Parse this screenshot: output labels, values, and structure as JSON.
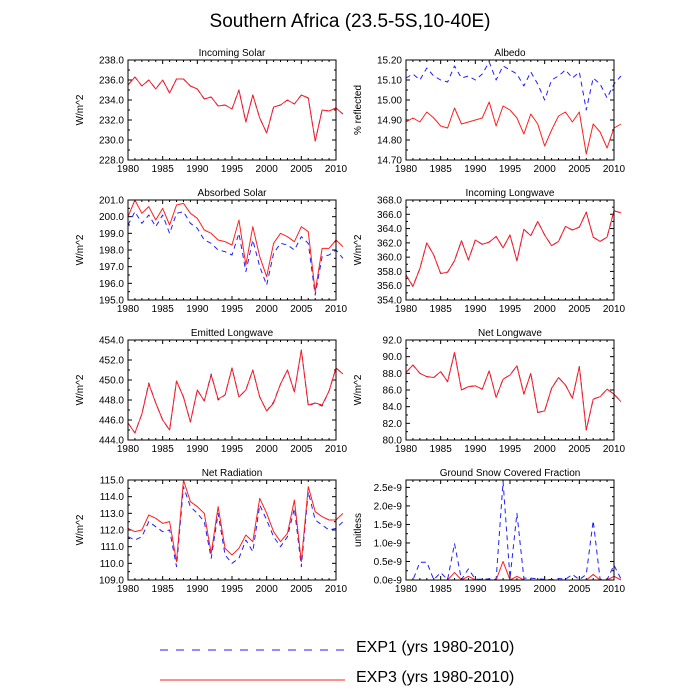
{
  "figure_title": "Southern Africa (23.5-5S,10-40E)",
  "legend": [
    {
      "name": "EXP1 (yrs 1980-2010)",
      "color": "#1f1fff",
      "dash": true
    },
    {
      "name": "EXP3 (yrs 1980-2010)",
      "color": "#ff1f1f",
      "dash": false
    }
  ],
  "chart_data": [
    {
      "type": "line",
      "title": "Incoming Solar",
      "ylabel": "W/m^2",
      "xlabel": "",
      "xlim": [
        1980,
        2010
      ],
      "ylim": [
        228,
        238
      ],
      "yticks": [
        228,
        230,
        232,
        234,
        236,
        238
      ],
      "ytick_labels": [
        "228.0",
        "230.0",
        "232.0",
        "234.0",
        "236.0",
        "238.0"
      ],
      "xticks": [
        1980,
        1985,
        1990,
        1995,
        2000,
        2005,
        2010
      ],
      "xtick_labels": [
        "1980",
        "1985",
        "1990",
        "1995",
        "2000",
        "2005",
        "2010"
      ],
      "series": [
        {
          "name": "EXP1",
          "values": [
            235.5,
            236.3,
            235.4,
            236.0,
            235.1,
            236.0,
            234.7,
            236.1,
            236.1,
            235.4,
            235.1,
            234.1,
            234.3,
            233.4,
            233.5,
            233.1,
            235.0,
            231.8,
            234.5,
            232.2,
            230.7,
            233.3,
            233.5,
            234.0,
            233.6,
            234.5,
            234.2,
            229.9,
            233.0,
            232.9,
            233.2,
            232.6
          ]
        },
        {
          "name": "EXP3",
          "values": [
            235.5,
            236.3,
            235.4,
            236.0,
            235.1,
            236.0,
            234.7,
            236.1,
            236.1,
            235.4,
            235.1,
            234.1,
            234.3,
            233.4,
            233.5,
            233.1,
            235.0,
            231.8,
            234.5,
            232.2,
            230.7,
            233.3,
            233.5,
            234.0,
            233.6,
            234.5,
            234.2,
            229.9,
            233.0,
            232.9,
            233.2,
            232.6
          ]
        }
      ]
    },
    {
      "type": "line",
      "title": "Albedo",
      "ylabel": "% reflected",
      "xlabel": "",
      "xlim": [
        1980,
        2010
      ],
      "ylim": [
        14.7,
        15.2
      ],
      "yticks": [
        14.7,
        14.8,
        14.9,
        15.0,
        15.1,
        15.2
      ],
      "ytick_labels": [
        "14.70",
        "14.80",
        "14.90",
        "15.00",
        "15.10",
        "15.20"
      ],
      "xticks": [
        1980,
        1985,
        1990,
        1995,
        2000,
        2005,
        2010
      ],
      "xtick_labels": [
        "1980",
        "1985",
        "1990",
        "1995",
        "2000",
        "2005",
        "2010"
      ],
      "series": [
        {
          "name": "EXP1",
          "values": [
            15.11,
            15.13,
            15.1,
            15.16,
            15.12,
            15.1,
            15.09,
            15.17,
            15.11,
            15.12,
            15.1,
            15.13,
            15.19,
            15.1,
            15.17,
            15.15,
            15.13,
            15.07,
            15.14,
            15.08,
            15.0,
            15.1,
            15.12,
            15.15,
            15.11,
            15.14,
            14.95,
            15.11,
            15.08,
            15.01,
            15.08,
            15.12
          ]
        },
        {
          "name": "EXP3",
          "values": [
            14.89,
            14.91,
            14.89,
            14.94,
            14.91,
            14.87,
            14.86,
            14.96,
            14.88,
            14.89,
            14.9,
            14.91,
            14.99,
            14.87,
            14.97,
            14.95,
            14.91,
            14.83,
            14.93,
            14.88,
            14.77,
            14.85,
            14.92,
            14.94,
            14.89,
            14.94,
            14.73,
            14.88,
            14.84,
            14.76,
            14.86,
            14.88
          ]
        }
      ]
    },
    {
      "type": "line",
      "title": "Absorbed Solar",
      "ylabel": "W/m^2",
      "xlabel": "",
      "xlim": [
        1980,
        2010
      ],
      "ylim": [
        195,
        201
      ],
      "yticks": [
        195,
        196,
        197,
        198,
        199,
        200,
        201
      ],
      "ytick_labels": [
        "195.0",
        "196.0",
        "197.0",
        "198.0",
        "199.0",
        "200.0",
        "201.0"
      ],
      "xticks": [
        1980,
        1985,
        1990,
        1995,
        2000,
        2005,
        2010
      ],
      "xtick_labels": [
        "1980",
        "1985",
        "1990",
        "1995",
        "2000",
        "2005",
        "2010"
      ],
      "series": [
        {
          "name": "EXP1",
          "values": [
            199.5,
            200.3,
            199.6,
            200.1,
            199.4,
            200.1,
            199.0,
            200.2,
            200.3,
            199.6,
            199.3,
            198.6,
            198.4,
            198.0,
            197.9,
            197.7,
            199.0,
            196.7,
            198.6,
            197.0,
            195.9,
            197.8,
            198.4,
            198.3,
            198.0,
            198.8,
            198.4,
            195.3,
            197.6,
            197.7,
            198.0,
            197.5
          ]
        },
        {
          "name": "EXP3",
          "values": [
            200.0,
            201.0,
            200.2,
            200.6,
            199.8,
            200.5,
            199.5,
            200.7,
            200.8,
            200.2,
            199.9,
            199.2,
            199.0,
            198.6,
            198.5,
            198.3,
            199.8,
            197.1,
            199.4,
            197.6,
            196.4,
            198.4,
            199.0,
            198.8,
            198.5,
            199.4,
            199.1,
            195.5,
            198.1,
            198.1,
            198.6,
            198.2
          ]
        }
      ]
    },
    {
      "type": "line",
      "title": "Incoming Longwave",
      "ylabel": "W/m^2",
      "xlabel": "",
      "xlim": [
        1980,
        2010
      ],
      "ylim": [
        354,
        368
      ],
      "yticks": [
        354,
        356,
        358,
        360,
        362,
        364,
        366,
        368
      ],
      "ytick_labels": [
        "354.0",
        "356.0",
        "358.0",
        "360.0",
        "362.0",
        "364.0",
        "366.0",
        "368.0"
      ],
      "xticks": [
        1980,
        1985,
        1990,
        1995,
        2000,
        2005,
        2010
      ],
      "xtick_labels": [
        "1980",
        "1985",
        "1990",
        "1995",
        "2000",
        "2005",
        "2010"
      ],
      "series": [
        {
          "name": "EXP1",
          "values": [
            357.5,
            355.9,
            358.4,
            362.0,
            360.3,
            357.7,
            357.9,
            359.5,
            362.3,
            359.6,
            362.4,
            361.8,
            362.1,
            362.9,
            361.3,
            363.1,
            359.5,
            363.9,
            363.0,
            365.0,
            363.1,
            361.6,
            362.2,
            364.3,
            363.8,
            364.2,
            366.3,
            362.8,
            362.2,
            362.8,
            366.5,
            366.2
          ]
        },
        {
          "name": "EXP3",
          "values": [
            357.5,
            355.9,
            358.4,
            362.0,
            360.3,
            357.7,
            357.9,
            359.5,
            362.3,
            359.6,
            362.4,
            361.8,
            362.1,
            362.9,
            361.3,
            363.1,
            359.5,
            363.9,
            363.0,
            365.0,
            363.1,
            361.6,
            362.2,
            364.3,
            363.8,
            364.2,
            366.3,
            362.8,
            362.2,
            362.8,
            366.5,
            366.2
          ]
        }
      ]
    },
    {
      "type": "line",
      "title": "Emitted Longwave",
      "ylabel": "W/m^2",
      "xlabel": "",
      "xlim": [
        1980,
        2010
      ],
      "ylim": [
        444,
        454
      ],
      "yticks": [
        444,
        446,
        448,
        450,
        452,
        454
      ],
      "ytick_labels": [
        "444.0",
        "446.0",
        "448.0",
        "450.0",
        "452.0",
        "454.0"
      ],
      "xticks": [
        1980,
        1985,
        1990,
        1995,
        2000,
        2005,
        2010
      ],
      "xtick_labels": [
        "1980",
        "1985",
        "1990",
        "1995",
        "2000",
        "2005",
        "2010"
      ],
      "series": [
        {
          "name": "EXP1",
          "values": [
            445.7,
            444.7,
            446.6,
            449.7,
            447.7,
            446.0,
            445.0,
            449.9,
            448.3,
            445.8,
            449.0,
            447.9,
            450.6,
            448.0,
            448.5,
            451.2,
            448.3,
            449.0,
            451.0,
            448.3,
            446.9,
            447.8,
            449.6,
            451.0,
            448.8,
            453.0,
            447.4,
            447.7,
            447.4,
            448.9,
            451.2,
            450.6
          ]
        },
        {
          "name": "EXP3",
          "values": [
            445.7,
            444.7,
            446.6,
            449.6,
            447.7,
            446.0,
            445.0,
            449.9,
            448.3,
            445.8,
            449.0,
            447.9,
            450.5,
            448.1,
            448.5,
            451.2,
            448.3,
            449.0,
            451.0,
            448.3,
            446.9,
            447.7,
            449.6,
            451.0,
            448.8,
            453.0,
            447.5,
            447.7,
            447.5,
            448.9,
            451.2,
            450.6
          ]
        }
      ]
    },
    {
      "type": "line",
      "title": "Net Longwave",
      "ylabel": "W/m^2",
      "xlabel": "",
      "xlim": [
        1980,
        2010
      ],
      "ylim": [
        80,
        92
      ],
      "yticks": [
        80,
        82,
        84,
        86,
        88,
        90,
        92
      ],
      "ytick_labels": [
        "80.0",
        "82.0",
        "84.0",
        "86.0",
        "88.0",
        "90.0",
        "92.0"
      ],
      "xticks": [
        1980,
        1985,
        1990,
        1995,
        2000,
        2005,
        2010
      ],
      "xtick_labels": [
        "1980",
        "1985",
        "1990",
        "1995",
        "2000",
        "2005",
        "2010"
      ],
      "series": [
        {
          "name": "EXP1",
          "values": [
            88.1,
            89.0,
            88.0,
            87.6,
            87.5,
            88.2,
            87.0,
            90.5,
            86.0,
            86.4,
            86.5,
            86.1,
            88.3,
            85.1,
            87.3,
            87.8,
            88.9,
            85.5,
            88.0,
            83.3,
            83.5,
            86.2,
            87.5,
            86.6,
            85.0,
            88.8,
            81.2,
            84.9,
            85.2,
            86.1,
            85.5,
            84.6
          ]
        },
        {
          "name": "EXP3",
          "values": [
            88.1,
            89.0,
            88.0,
            87.6,
            87.5,
            88.2,
            87.0,
            90.5,
            86.0,
            86.4,
            86.5,
            86.1,
            88.3,
            85.1,
            87.3,
            87.8,
            88.9,
            85.5,
            88.0,
            83.3,
            83.5,
            86.2,
            87.5,
            86.6,
            85.0,
            88.8,
            81.2,
            84.9,
            85.2,
            86.1,
            85.5,
            84.6
          ]
        }
      ]
    },
    {
      "type": "line",
      "title": "Net Radiation",
      "ylabel": "W/m^2",
      "xlabel": "",
      "xlim": [
        1980,
        2010
      ],
      "ylim": [
        109,
        115
      ],
      "yticks": [
        109,
        110,
        111,
        112,
        113,
        114,
        115
      ],
      "ytick_labels": [
        "109.0",
        "110.0",
        "111.0",
        "112.0",
        "113.0",
        "114.0",
        "115.0"
      ],
      "xticks": [
        1980,
        1985,
        1990,
        1995,
        2000,
        2005,
        2010
      ],
      "xtick_labels": [
        "1980",
        "1985",
        "1990",
        "1995",
        "2000",
        "2005",
        "2010"
      ],
      "series": [
        {
          "name": "EXP1",
          "values": [
            111.6,
            111.4,
            111.6,
            112.5,
            112.2,
            111.9,
            112.0,
            109.8,
            114.6,
            113.4,
            113.0,
            112.5,
            110.3,
            113.0,
            110.5,
            110.0,
            110.3,
            111.4,
            110.7,
            113.5,
            112.6,
            111.6,
            111.0,
            111.6,
            113.3,
            109.8,
            114.3,
            112.6,
            112.3,
            112.0,
            112.1,
            112.5
          ]
        },
        {
          "name": "EXP3",
          "values": [
            112.1,
            111.9,
            112.0,
            112.9,
            112.7,
            112.4,
            112.5,
            110.1,
            115.0,
            113.7,
            113.4,
            113.0,
            110.6,
            113.4,
            110.9,
            110.5,
            110.9,
            111.7,
            111.3,
            113.9,
            113.0,
            111.9,
            111.3,
            111.8,
            113.8,
            110.1,
            114.6,
            113.1,
            112.8,
            112.6,
            112.6,
            113.0
          ]
        }
      ]
    },
    {
      "type": "line",
      "title": "Ground Snow Covered Fraction",
      "ylabel": "unitless",
      "xlabel": "",
      "xlim": [
        1980,
        2010
      ],
      "ylim": [
        0,
        2.7e-09
      ],
      "yticks": [
        0,
        5e-10,
        1e-09,
        1.5e-09,
        2e-09,
        2.5e-09
      ],
      "ytick_labels": [
        "0.0e-9",
        "0.5e-9",
        "1.0e-9",
        "1.5e-9",
        "2.0e-9",
        "2.5e-9"
      ],
      "xticks": [
        1980,
        1985,
        1990,
        1995,
        2000,
        2005,
        2010
      ],
      "xtick_labels": [
        "1980",
        "1985",
        "1990",
        "1995",
        "2000",
        "2005",
        "2010"
      ],
      "series": [
        {
          "name": "EXP1",
          "values": [
            0,
            0,
            4.8e-10,
            4.8e-10,
            1e-11,
            2e-10,
            1e-11,
            9.8e-10,
            1e-11,
            3e-10,
            2e-11,
            2e-11,
            3e-11,
            2e-11,
            2.65e-09,
            5e-11,
            1.8e-09,
            5e-11,
            5e-11,
            3e-11,
            2e-11,
            1e-11,
            4e-11,
            2e-11,
            1.5e-10,
            1e-11,
            1.5e-10,
            1.6e-09,
            1e-11,
            1e-11,
            4e-10,
            3e-11
          ]
        },
        {
          "name": "EXP3",
          "values": [
            0,
            0,
            0,
            0,
            0,
            0,
            0,
            2e-10,
            0,
            1e-10,
            0,
            0,
            0,
            0,
            5e-10,
            0,
            1e-10,
            0,
            0,
            0,
            0,
            0,
            0,
            0,
            0,
            0,
            0,
            1.5e-10,
            0,
            0,
            1e-10,
            0
          ]
        }
      ]
    }
  ]
}
